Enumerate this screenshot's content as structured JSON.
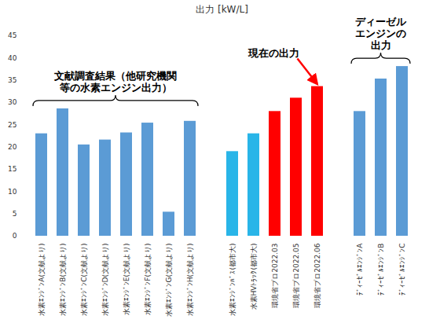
{
  "chart_data": {
    "type": "bar",
    "title": "出力 [kW/L]",
    "categories": [
      "水素ｴﾝｼﾞﾝA(文献より)",
      "水素ｴﾝｼﾞﾝB(文献より)",
      "水素ｴﾝｼﾞﾝC(文献より)",
      "水素ｴﾝｼﾞﾝD(文献より)",
      "水素ｴﾝｼﾞﾝE(文献より)",
      "水素ｴﾝｼﾞﾝF(文献より)",
      "水素ｴﾝｼﾞﾝG(文献より)",
      "水素ｴﾝｼﾞﾝH(文献より)",
      null,
      "水素ｴﾝｼﾞﾝﾊﾞｽ(都市大)",
      "水素HVﾄﾗｯｸ(都市大)",
      "環境省プロ2022.03",
      "環境省プロ2022.05",
      "環境省プロ2022.06",
      null,
      "ﾃﾞｨｰｾﾞﾙｴﾝｼﾞﾝA",
      "ﾃﾞｨｰｾﾞﾙｴﾝｼﾞﾝB",
      "ﾃﾞｨｰｾﾞﾙｴﾝｼﾞﾝC"
    ],
    "values": [
      23,
      28.6,
      20.5,
      21.6,
      23.2,
      25.4,
      5.4,
      25.8,
      null,
      19,
      23,
      28,
      31,
      33.6,
      null,
      28,
      35.3,
      38.1
    ],
    "colors": [
      "#5b9bd5",
      "#5b9bd5",
      "#5b9bd5",
      "#5b9bd5",
      "#5b9bd5",
      "#5b9bd5",
      "#5b9bd5",
      "#5b9bd5",
      null,
      "#29b5e8",
      "#29b5e8",
      "#ff0000",
      "#ff0000",
      "#ff0000",
      null,
      "#5b9bd5",
      "#5b9bd5",
      "#5b9bd5"
    ],
    "ylim": [
      0,
      45
    ],
    "yticks": [
      0,
      5,
      10,
      15,
      20,
      25,
      30,
      35,
      40,
      45
    ],
    "grid": false,
    "annotations": [
      "文献調査結果（他研究機関\n等の水素エンジン出力）",
      "現在の出力",
      "ディーゼル\nエンジンの\n出力"
    ]
  }
}
